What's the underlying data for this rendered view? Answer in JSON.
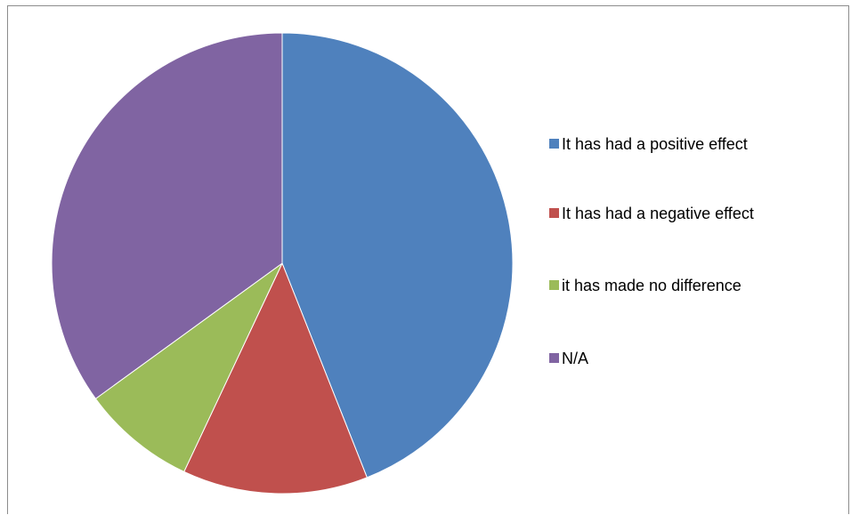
{
  "chart_data": {
    "type": "pie",
    "title": "",
    "slices": [
      {
        "label": "It has had a positive effect",
        "value": 44,
        "color": "#4F81BD"
      },
      {
        "label": "It has had a negative effect",
        "value": 13,
        "color": "#C0504D"
      },
      {
        "label": "it has made no difference",
        "value": 8,
        "color": "#9BBB59"
      },
      {
        "label": "N/A",
        "value": 35,
        "color": "#8064A2"
      }
    ],
    "start_angle_deg": 0,
    "direction": "clockwise",
    "legend_position": "right"
  }
}
